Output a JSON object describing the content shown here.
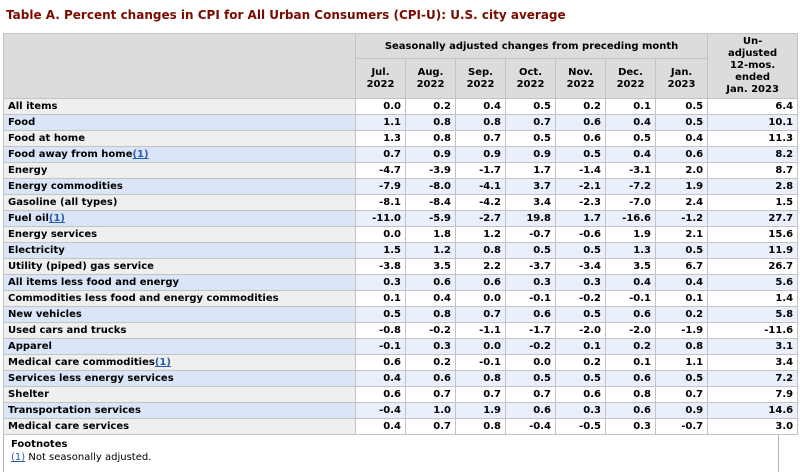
{
  "title": "Table A. Percent changes in CPI for All Urban Consumers (CPI-U): U.S. city average",
  "table": {
    "sa_header": "Seasonally adjusted changes from preceding month",
    "unadjusted_header": "Un-\nadjusted\n12-mos.\nended\nJan. 2023",
    "month_headers": [
      "Jul.\n2022",
      "Aug.\n2022",
      "Sep.\n2022",
      "Oct.\n2022",
      "Nov.\n2022",
      "Dec.\n2022",
      "Jan.\n2023"
    ],
    "rows": [
      {
        "label": "All items",
        "indent": 0,
        "values": [
          "0.0",
          "0.2",
          "0.4",
          "0.5",
          "0.2",
          "0.1",
          "0.5",
          "6.4"
        ]
      },
      {
        "label": "Food",
        "indent": 1,
        "values": [
          "1.1",
          "0.8",
          "0.8",
          "0.7",
          "0.6",
          "0.4",
          "0.5",
          "10.1"
        ]
      },
      {
        "label": "Food at home",
        "indent": 2,
        "values": [
          "1.3",
          "0.8",
          "0.7",
          "0.5",
          "0.6",
          "0.5",
          "0.4",
          "11.3"
        ]
      },
      {
        "label": "Food away from home",
        "footnote": "(1)",
        "indent": 2,
        "values": [
          "0.7",
          "0.9",
          "0.9",
          "0.9",
          "0.5",
          "0.4",
          "0.6",
          "8.2"
        ]
      },
      {
        "label": "Energy",
        "indent": 1,
        "values": [
          "-4.7",
          "-3.9",
          "-1.7",
          "1.7",
          "-1.4",
          "-3.1",
          "2.0",
          "8.7"
        ]
      },
      {
        "label": "Energy commodities",
        "indent": 2,
        "values": [
          "-7.9",
          "-8.0",
          "-4.1",
          "3.7",
          "-2.1",
          "-7.2",
          "1.9",
          "2.8"
        ]
      },
      {
        "label": "Gasoline (all types)",
        "indent": 3,
        "values": [
          "-8.1",
          "-8.4",
          "-4.2",
          "3.4",
          "-2.3",
          "-7.0",
          "2.4",
          "1.5"
        ]
      },
      {
        "label": "Fuel oil",
        "footnote": "(1)",
        "indent": 3,
        "values": [
          "-11.0",
          "-5.9",
          "-2.7",
          "19.8",
          "1.7",
          "-16.6",
          "-1.2",
          "27.7"
        ]
      },
      {
        "label": "Energy services",
        "indent": 2,
        "values": [
          "0.0",
          "1.8",
          "1.2",
          "-0.7",
          "-0.6",
          "1.9",
          "2.1",
          "15.6"
        ]
      },
      {
        "label": "Electricity",
        "indent": 3,
        "values": [
          "1.5",
          "1.2",
          "0.8",
          "0.5",
          "0.5",
          "1.3",
          "0.5",
          "11.9"
        ]
      },
      {
        "label": "Utility (piped) gas service",
        "indent": 3,
        "values": [
          "-3.8",
          "3.5",
          "2.2",
          "-3.7",
          "-3.4",
          "3.5",
          "6.7",
          "26.7"
        ]
      },
      {
        "label": "All items less food and energy",
        "indent": 1,
        "values": [
          "0.3",
          "0.6",
          "0.6",
          "0.3",
          "0.3",
          "0.4",
          "0.4",
          "5.6"
        ]
      },
      {
        "label": "Commodities less food and energy commodities",
        "indent": 2,
        "values": [
          "0.1",
          "0.4",
          "0.0",
          "-0.1",
          "-0.2",
          "-0.1",
          "0.1",
          "1.4"
        ]
      },
      {
        "label": "New vehicles",
        "indent": 3,
        "values": [
          "0.5",
          "0.8",
          "0.7",
          "0.6",
          "0.5",
          "0.6",
          "0.2",
          "5.8"
        ]
      },
      {
        "label": "Used cars and trucks",
        "indent": 3,
        "values": [
          "-0.8",
          "-0.2",
          "-1.1",
          "-1.7",
          "-2.0",
          "-2.0",
          "-1.9",
          "-11.6"
        ]
      },
      {
        "label": "Apparel",
        "indent": 3,
        "values": [
          "-0.1",
          "0.3",
          "0.0",
          "-0.2",
          "0.1",
          "0.2",
          "0.8",
          "3.1"
        ]
      },
      {
        "label": "Medical care commodities",
        "footnote": "(1)",
        "indent": 3,
        "values": [
          "0.6",
          "0.2",
          "-0.1",
          "0.0",
          "0.2",
          "0.1",
          "1.1",
          "3.4"
        ]
      },
      {
        "label": "Services less energy services",
        "indent": 2,
        "values": [
          "0.4",
          "0.6",
          "0.8",
          "0.5",
          "0.5",
          "0.6",
          "0.5",
          "7.2"
        ]
      },
      {
        "label": "Shelter",
        "indent": 3,
        "values": [
          "0.6",
          "0.7",
          "0.7",
          "0.7",
          "0.6",
          "0.8",
          "0.7",
          "7.9"
        ]
      },
      {
        "label": "Transportation services",
        "indent": 3,
        "values": [
          "-0.4",
          "1.0",
          "1.9",
          "0.6",
          "0.3",
          "0.6",
          "0.9",
          "14.6"
        ]
      },
      {
        "label": "Medical care services",
        "indent": 3,
        "values": [
          "0.4",
          "0.7",
          "0.8",
          "-0.4",
          "-0.5",
          "0.3",
          "-0.7",
          "3.0"
        ]
      }
    ]
  },
  "footnotes": {
    "heading": "Footnotes",
    "items": [
      {
        "marker": "(1)",
        "text": " Not seasonally adjusted."
      }
    ]
  },
  "colors": {
    "title": "#7a0b00",
    "link": "#2a5db0",
    "header_bg": "#dcdcdc",
    "stub_odd_bg": "#efefef",
    "stub_even_bg": "#dbe5f8",
    "data_odd_bg": "#ffffff",
    "data_even_bg": "#eaf0fb",
    "cell_border": "#c3c3c3",
    "outer_border": "#9a9a9a"
  }
}
